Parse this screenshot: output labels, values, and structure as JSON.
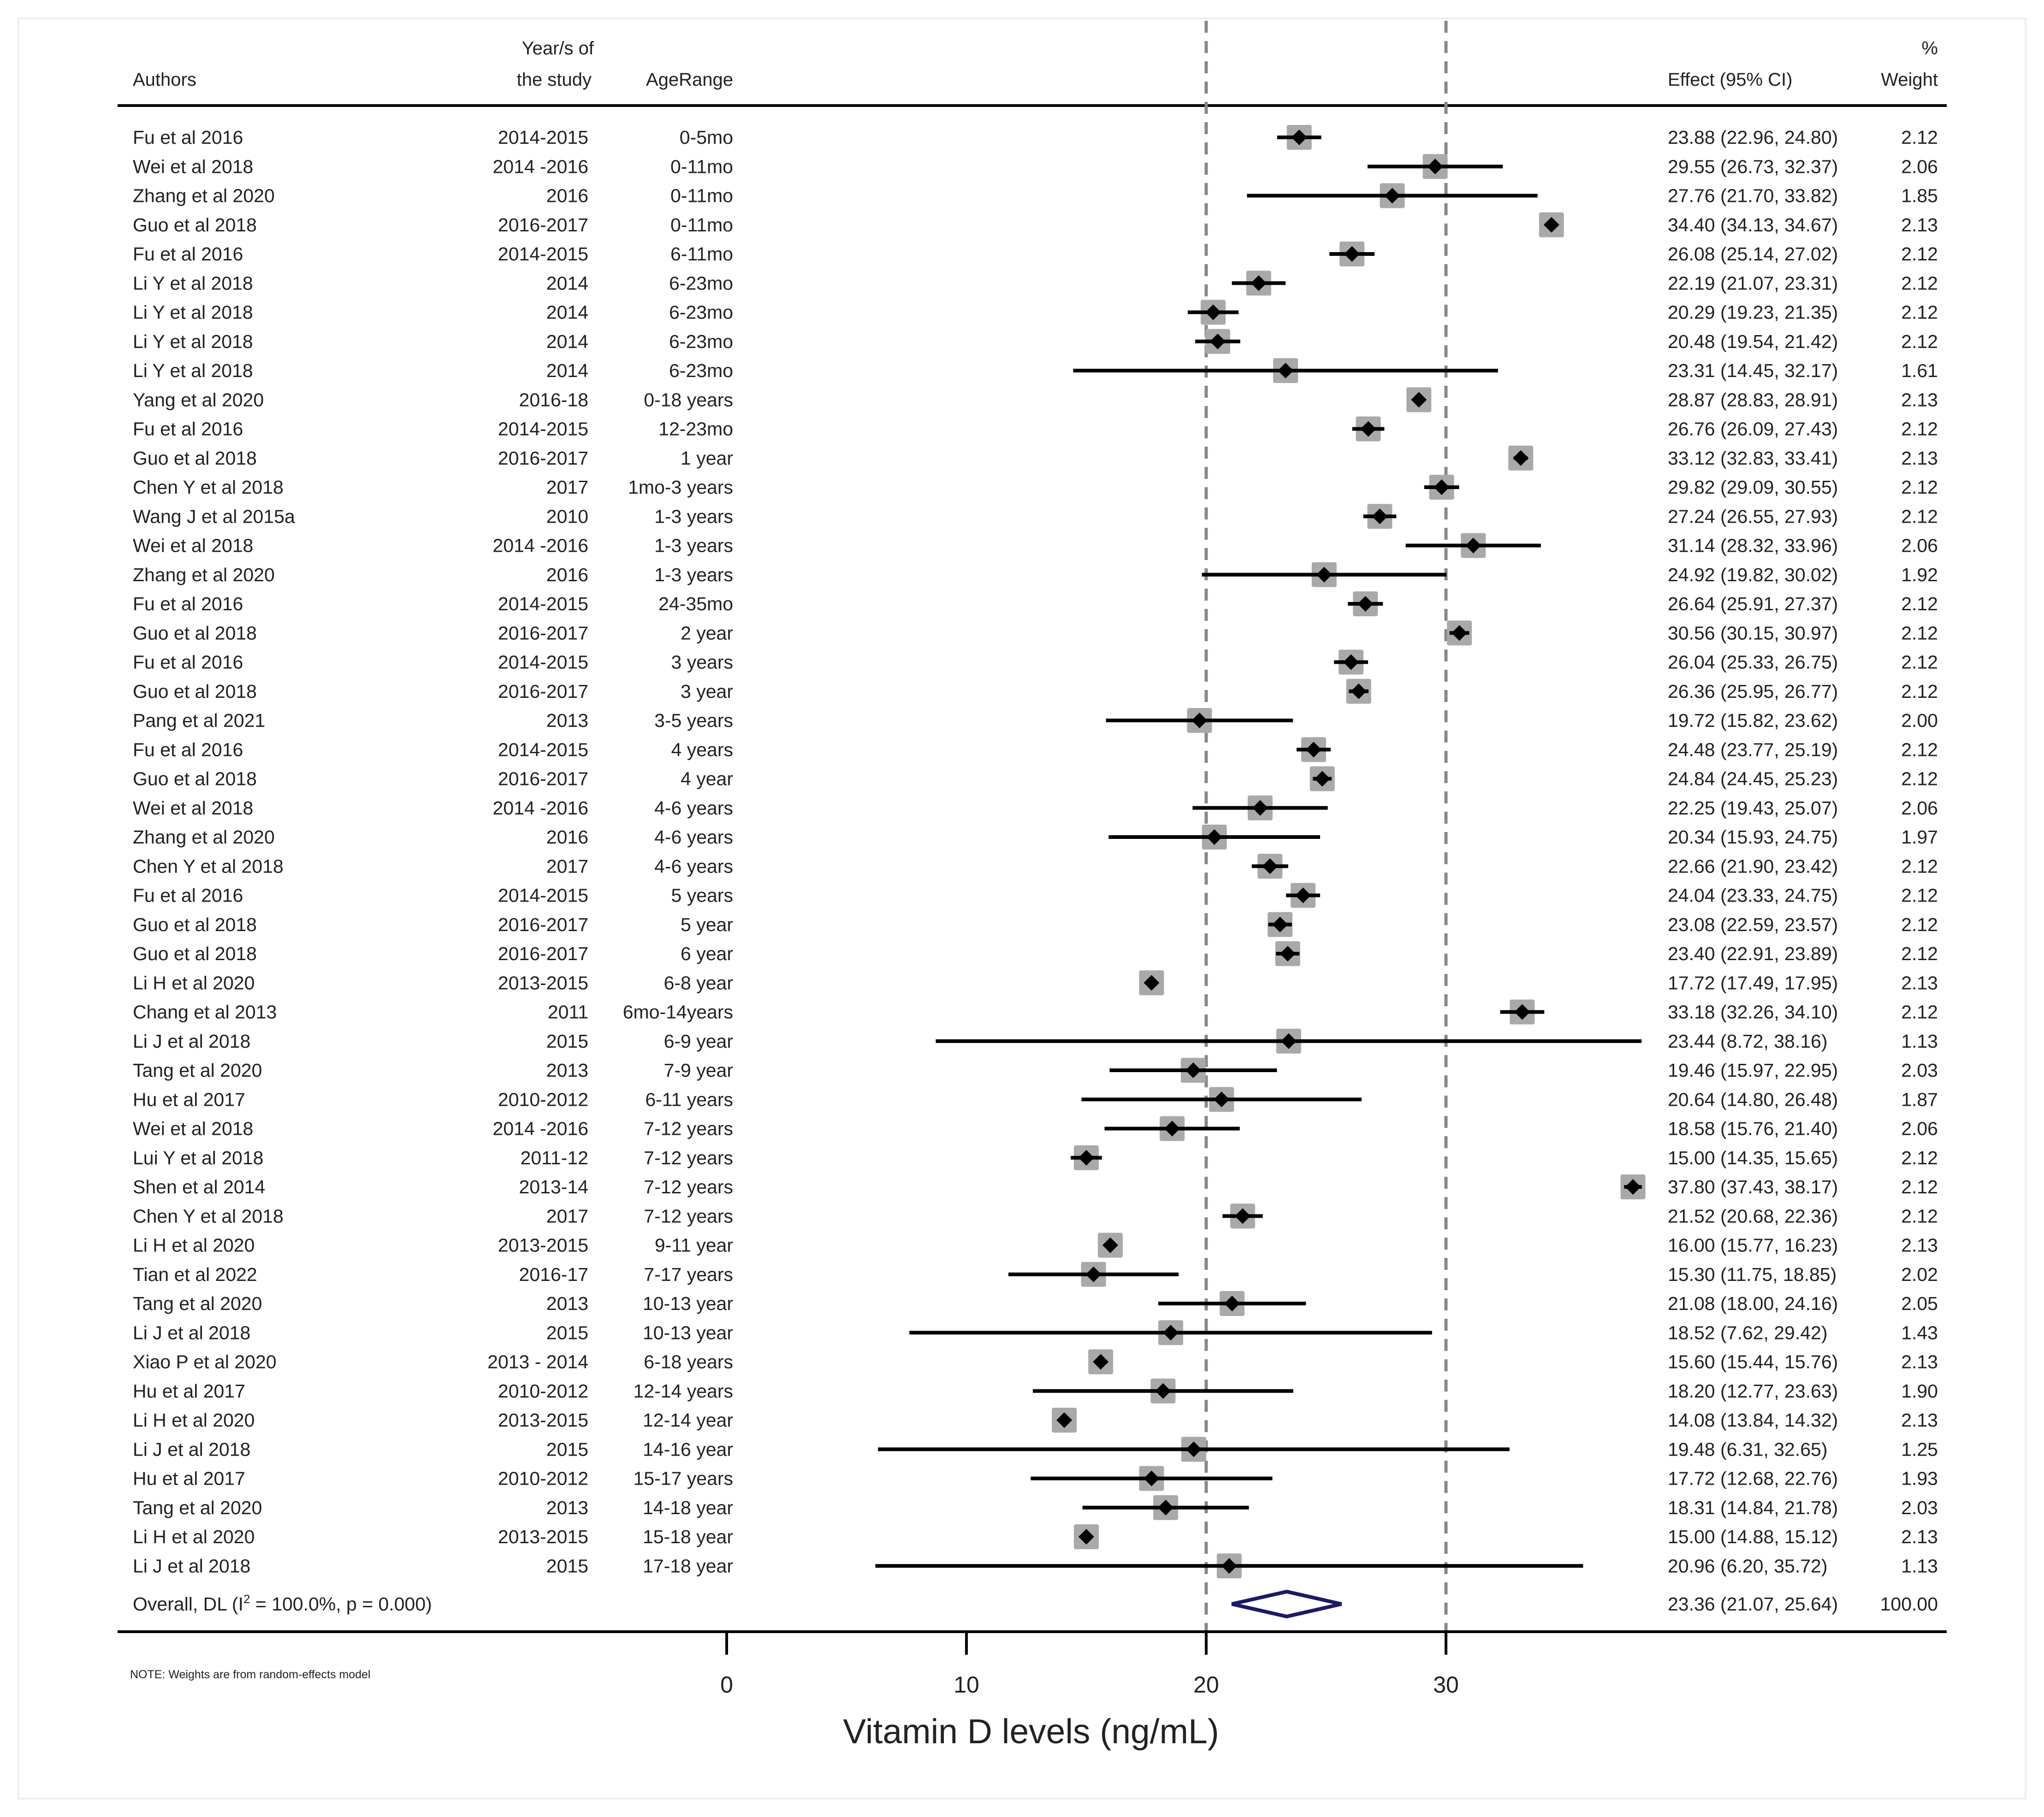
{
  "chart_data": {
    "type": "forest",
    "xlabel": "Vitamin D levels (ng/mL)",
    "xlim": [
      0,
      40
    ],
    "xticks": [
      0,
      10,
      20,
      30
    ],
    "reference_lines": [
      20,
      30
    ],
    "headers": {
      "authors": "Authors",
      "year_line1": "Year/s of",
      "year_line2": "the study",
      "age": "AgeRange",
      "effect": "Effect (95% CI)",
      "weight_line1": "%",
      "weight_line2": "Weight"
    },
    "studies": [
      {
        "author": "Fu et al 2016",
        "year": "2014-2015",
        "age": "0-5mo",
        "est": 23.88,
        "lo": 22.96,
        "hi": 24.8,
        "ci": "23.88 (22.96, 24.80)",
        "weight": "2.12"
      },
      {
        "author": "Wei et al 2018",
        "year": "2014 -2016",
        "age": "0-11mo",
        "est": 29.55,
        "lo": 26.73,
        "hi": 32.37,
        "ci": "29.55 (26.73, 32.37)",
        "weight": "2.06"
      },
      {
        "author": "Zhang et al 2020",
        "year": "2016",
        "age": "0-11mo",
        "est": 27.76,
        "lo": 21.7,
        "hi": 33.82,
        "ci": "27.76 (21.70, 33.82)",
        "weight": "1.85"
      },
      {
        "author": "Guo et al 2018",
        "year": "2016-2017",
        "age": "0-11mo",
        "est": 34.4,
        "lo": 34.13,
        "hi": 34.67,
        "ci": "34.40 (34.13, 34.67)",
        "weight": "2.13"
      },
      {
        "author": "Fu et al 2016",
        "year": "2014-2015",
        "age": "6-11mo",
        "est": 26.08,
        "lo": 25.14,
        "hi": 27.02,
        "ci": "26.08 (25.14, 27.02)",
        "weight": "2.12"
      },
      {
        "author": "Li Y et al 2018",
        "year": "2014",
        "age": "6-23mo",
        "est": 22.19,
        "lo": 21.07,
        "hi": 23.31,
        "ci": "22.19 (21.07, 23.31)",
        "weight": "2.12"
      },
      {
        "author": "Li Y et al 2018",
        "year": "2014",
        "age": "6-23mo",
        "est": 20.29,
        "lo": 19.23,
        "hi": 21.35,
        "ci": "20.29 (19.23, 21.35)",
        "weight": "2.12"
      },
      {
        "author": "Li Y et al 2018",
        "year": "2014",
        "age": "6-23mo",
        "est": 20.48,
        "lo": 19.54,
        "hi": 21.42,
        "ci": "20.48 (19.54, 21.42)",
        "weight": "2.12"
      },
      {
        "author": "Li Y et al 2018",
        "year": "2014",
        "age": "6-23mo",
        "est": 23.31,
        "lo": 14.45,
        "hi": 32.17,
        "ci": "23.31 (14.45, 32.17)",
        "weight": "1.61"
      },
      {
        "author": "Yang et al 2020",
        "year": "2016-18",
        "age": "0-18 years",
        "est": 28.87,
        "lo": 28.83,
        "hi": 28.91,
        "ci": "28.87 (28.83, 28.91)",
        "weight": "2.13"
      },
      {
        "author": "Fu et al 2016",
        "year": "2014-2015",
        "age": "12-23mo",
        "est": 26.76,
        "lo": 26.09,
        "hi": 27.43,
        "ci": "26.76 (26.09, 27.43)",
        "weight": "2.12"
      },
      {
        "author": "Guo et al 2018",
        "year": "2016-2017",
        "age": "1 year",
        "est": 33.12,
        "lo": 32.83,
        "hi": 33.41,
        "ci": "33.12 (32.83, 33.41)",
        "weight": "2.13"
      },
      {
        "author": "Chen Y et al 2018",
        "year": "2017",
        "age": "1mo-3 years",
        "est": 29.82,
        "lo": 29.09,
        "hi": 30.55,
        "ci": "29.82 (29.09, 30.55)",
        "weight": "2.12"
      },
      {
        "author": "Wang J et al 2015a",
        "year": "2010",
        "age": "1-3 years",
        "est": 27.24,
        "lo": 26.55,
        "hi": 27.93,
        "ci": "27.24 (26.55, 27.93)",
        "weight": "2.12"
      },
      {
        "author": "Wei et al 2018",
        "year": "2014 -2016",
        "age": "1-3 years",
        "est": 31.14,
        "lo": 28.32,
        "hi": 33.96,
        "ci": "31.14 (28.32, 33.96)",
        "weight": "2.06"
      },
      {
        "author": "Zhang et al 2020",
        "year": "2016",
        "age": "1-3 years",
        "est": 24.92,
        "lo": 19.82,
        "hi": 30.02,
        "ci": "24.92 (19.82, 30.02)",
        "weight": "1.92"
      },
      {
        "author": "Fu et al 2016",
        "year": "2014-2015",
        "age": "24-35mo",
        "est": 26.64,
        "lo": 25.91,
        "hi": 27.37,
        "ci": "26.64 (25.91, 27.37)",
        "weight": "2.12"
      },
      {
        "author": "Guo et al 2018",
        "year": "2016-2017",
        "age": "2 year",
        "est": 30.56,
        "lo": 30.15,
        "hi": 30.97,
        "ci": "30.56 (30.15, 30.97)",
        "weight": "2.12"
      },
      {
        "author": "Fu et al 2016",
        "year": "2014-2015",
        "age": "3 years",
        "est": 26.04,
        "lo": 25.33,
        "hi": 26.75,
        "ci": "26.04 (25.33, 26.75)",
        "weight": "2.12"
      },
      {
        "author": "Guo et al 2018",
        "year": "2016-2017",
        "age": "3 year",
        "est": 26.36,
        "lo": 25.95,
        "hi": 26.77,
        "ci": "26.36 (25.95, 26.77)",
        "weight": "2.12"
      },
      {
        "author": "Pang et al 2021",
        "year": "2013",
        "age": "3-5 years",
        "est": 19.72,
        "lo": 15.82,
        "hi": 23.62,
        "ci": "19.72 (15.82, 23.62)",
        "weight": "2.00"
      },
      {
        "author": "Fu et al 2016",
        "year": "2014-2015",
        "age": "4 years",
        "est": 24.48,
        "lo": 23.77,
        "hi": 25.19,
        "ci": "24.48 (23.77, 25.19)",
        "weight": "2.12"
      },
      {
        "author": "Guo et al 2018",
        "year": "2016-2017",
        "age": "4 year",
        "est": 24.84,
        "lo": 24.45,
        "hi": 25.23,
        "ci": "24.84 (24.45, 25.23)",
        "weight": "2.12"
      },
      {
        "author": "Wei et al 2018",
        "year": "2014 -2016",
        "age": "4-6 years",
        "est": 22.25,
        "lo": 19.43,
        "hi": 25.07,
        "ci": "22.25 (19.43, 25.07)",
        "weight": "2.06"
      },
      {
        "author": "Zhang et al 2020",
        "year": "2016",
        "age": "4-6 years",
        "est": 20.34,
        "lo": 15.93,
        "hi": 24.75,
        "ci": "20.34 (15.93, 24.75)",
        "weight": "1.97"
      },
      {
        "author": "Chen Y et al 2018",
        "year": "2017",
        "age": "4-6 years",
        "est": 22.66,
        "lo": 21.9,
        "hi": 23.42,
        "ci": "22.66 (21.90, 23.42)",
        "weight": "2.12"
      },
      {
        "author": "Fu et al 2016",
        "year": "2014-2015",
        "age": "5 years",
        "est": 24.04,
        "lo": 23.33,
        "hi": 24.75,
        "ci": "24.04 (23.33, 24.75)",
        "weight": "2.12"
      },
      {
        "author": "Guo et al 2018",
        "year": "2016-2017",
        "age": "5 year",
        "est": 23.08,
        "lo": 22.59,
        "hi": 23.57,
        "ci": "23.08 (22.59, 23.57)",
        "weight": "2.12"
      },
      {
        "author": "Guo et al 2018",
        "year": "2016-2017",
        "age": "6 year",
        "est": 23.4,
        "lo": 22.91,
        "hi": 23.89,
        "ci": "23.40 (22.91, 23.89)",
        "weight": "2.12"
      },
      {
        "author": "Li H et al 2020",
        "year": "2013-2015",
        "age": "6-8 year",
        "est": 17.72,
        "lo": 17.49,
        "hi": 17.95,
        "ci": "17.72 (17.49, 17.95)",
        "weight": "2.13"
      },
      {
        "author": "Chang et al 2013",
        "year": "2011",
        "age": "6mo-14years",
        "est": 33.18,
        "lo": 32.26,
        "hi": 34.1,
        "ci": "33.18 (32.26, 34.10)",
        "weight": "2.12"
      },
      {
        "author": "Li J et al 2018",
        "year": "2015",
        "age": "6-9 year",
        "est": 23.44,
        "lo": 8.72,
        "hi": 38.16,
        "ci": "23.44 (8.72, 38.16)",
        "weight": "1.13"
      },
      {
        "author": "Tang et al 2020",
        "year": "2013",
        "age": "7-9 year",
        "est": 19.46,
        "lo": 15.97,
        "hi": 22.95,
        "ci": "19.46 (15.97, 22.95)",
        "weight": "2.03"
      },
      {
        "author": "Hu et al 2017",
        "year": "2010-2012",
        "age": "6-11 years",
        "est": 20.64,
        "lo": 14.8,
        "hi": 26.48,
        "ci": "20.64 (14.80, 26.48)",
        "weight": "1.87"
      },
      {
        "author": "Wei et al 2018",
        "year": "2014 -2016",
        "age": "7-12 years",
        "est": 18.58,
        "lo": 15.76,
        "hi": 21.4,
        "ci": "18.58 (15.76, 21.40)",
        "weight": "2.06"
      },
      {
        "author": "Lui Y et al 2018",
        "year": "2011-12",
        "age": "7-12 years",
        "est": 15.0,
        "lo": 14.35,
        "hi": 15.65,
        "ci": "15.00 (14.35, 15.65)",
        "weight": "2.12"
      },
      {
        "author": "Shen et al 2014",
        "year": "2013-14",
        "age": "7-12 years",
        "est": 37.8,
        "lo": 37.43,
        "hi": 38.17,
        "ci": "37.80 (37.43, 38.17)",
        "weight": "2.12"
      },
      {
        "author": "Chen Y et al 2018",
        "year": "2017",
        "age": "7-12 years",
        "est": 21.52,
        "lo": 20.68,
        "hi": 22.36,
        "ci": "21.52 (20.68, 22.36)",
        "weight": "2.12"
      },
      {
        "author": "Li H et al 2020",
        "year": "2013-2015",
        "age": "9-11 year",
        "est": 16.0,
        "lo": 15.77,
        "hi": 16.23,
        "ci": "16.00 (15.77, 16.23)",
        "weight": "2.13"
      },
      {
        "author": "Tian et al 2022",
        "year": "2016-17",
        "age": "7-17 years",
        "est": 15.3,
        "lo": 11.75,
        "hi": 18.85,
        "ci": "15.30 (11.75, 18.85)",
        "weight": "2.02"
      },
      {
        "author": "Tang et al 2020",
        "year": "2013",
        "age": "10-13 year",
        "est": 21.08,
        "lo": 18.0,
        "hi": 24.16,
        "ci": "21.08 (18.00, 24.16)",
        "weight": "2.05"
      },
      {
        "author": "Li J et al 2018",
        "year": "2015",
        "age": "10-13 year",
        "est": 18.52,
        "lo": 7.62,
        "hi": 29.42,
        "ci": "18.52 (7.62, 29.42)",
        "weight": "1.43"
      },
      {
        "author": "Xiao P et al 2020",
        "year": "2013 - 2014",
        "age": "6-18 years",
        "est": 15.6,
        "lo": 15.44,
        "hi": 15.76,
        "ci": "15.60 (15.44, 15.76)",
        "weight": "2.13"
      },
      {
        "author": "Hu et al 2017",
        "year": "2010-2012",
        "age": "12-14 years",
        "est": 18.2,
        "lo": 12.77,
        "hi": 23.63,
        "ci": "18.20 (12.77, 23.63)",
        "weight": "1.90"
      },
      {
        "author": "Li H et al 2020",
        "year": "2013-2015",
        "age": "12-14 year",
        "est": 14.08,
        "lo": 13.84,
        "hi": 14.32,
        "ci": "14.08 (13.84, 14.32)",
        "weight": "2.13"
      },
      {
        "author": "Li J et al 2018",
        "year": "2015",
        "age": "14-16 year",
        "est": 19.48,
        "lo": 6.31,
        "hi": 32.65,
        "ci": "19.48 (6.31, 32.65)",
        "weight": "1.25"
      },
      {
        "author": "Hu et al 2017",
        "year": "2010-2012",
        "age": "15-17 years",
        "est": 17.72,
        "lo": 12.68,
        "hi": 22.76,
        "ci": "17.72 (12.68, 22.76)",
        "weight": "1.93"
      },
      {
        "author": "Tang et al 2020",
        "year": "2013",
        "age": "14-18 year",
        "est": 18.31,
        "lo": 14.84,
        "hi": 21.78,
        "ci": "18.31 (14.84, 21.78)",
        "weight": "2.03"
      },
      {
        "author": "Li H et al 2020",
        "year": "2013-2015",
        "age": "15-18 year",
        "est": 15.0,
        "lo": 14.88,
        "hi": 15.12,
        "ci": "15.00 (14.88, 15.12)",
        "weight": "2.13"
      },
      {
        "author": "Li J et al 2018",
        "year": "2015",
        "age": "17-18 year",
        "est": 20.96,
        "lo": 6.2,
        "hi": 35.72,
        "ci": "20.96 (6.20, 35.72)",
        "weight": "1.13"
      }
    ],
    "overall": {
      "label_prefix": "Overall, DL (I",
      "label_sup": "2",
      "label_suffix": " = 100.0%, p = 0.000)",
      "est": 23.36,
      "lo": 21.07,
      "hi": 25.64,
      "ci": "23.36 (21.07, 25.64)",
      "weight": "100.00"
    },
    "note": "NOTE: Weights are from random-effects model",
    "colors": {
      "point": "#000000",
      "box": "#a9a9a9",
      "ci_line": "#000000",
      "ref_line": "#888888",
      "diamond": "#1a1a66",
      "text": "#222222"
    }
  }
}
